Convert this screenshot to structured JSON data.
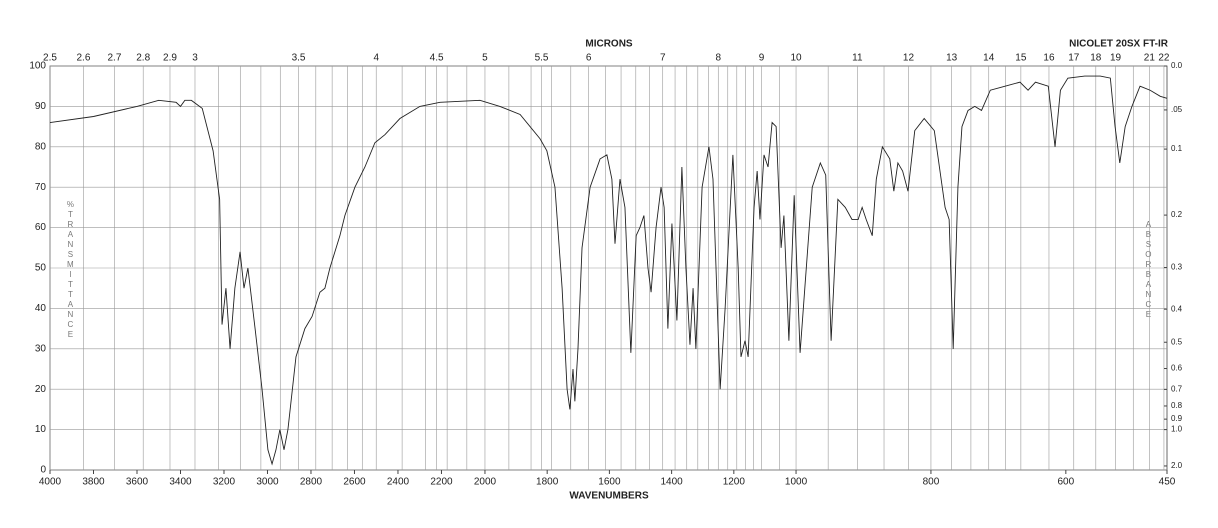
{
  "chart_data": {
    "type": "line",
    "title": "NICOLET 20SX FT-IR",
    "x_label": "WAVENUMBERS",
    "x2_label": "MICRONS",
    "y_label": "%TRANSMITTANCE",
    "y2_label": "ABSORBANCE",
    "color": "#222222",
    "grid": true,
    "xlim": [
      4000,
      450
    ],
    "xbreaks": [
      2000,
      1000
    ],
    "xticks": [
      4000,
      3800,
      3600,
      3400,
      3200,
      3000,
      2800,
      2600,
      2400,
      2200,
      2000,
      1800,
      1600,
      1400,
      1200,
      1000,
      800,
      600,
      450
    ],
    "x2ticks": [
      2.5,
      2.6,
      2.7,
      2.8,
      2.9,
      3,
      3.5,
      4,
      4.5,
      5,
      5.5,
      6,
      7,
      8,
      9,
      10,
      11,
      12,
      13,
      14,
      15,
      16,
      17,
      18,
      19,
      21,
      22
    ],
    "x2minor": [
      3.1,
      3.2,
      3.3,
      3.4,
      3.6,
      3.7,
      3.8,
      3.9,
      4.2,
      4.4,
      4.6,
      4.8,
      5.2,
      5.4,
      5.6,
      5.8,
      6.2,
      6.4,
      6.6,
      6.8,
      7.2,
      7.4,
      7.6,
      7.8,
      8.2,
      8.4,
      8.6,
      8.8,
      9.5,
      10.5,
      11.5,
      12.5,
      13.5,
      14.5,
      20
    ],
    "ylim": [
      0,
      100
    ],
    "yticks": [
      0,
      10,
      20,
      30,
      40,
      50,
      60,
      70,
      80,
      90,
      100
    ],
    "y2ticks": [
      {
        "value": 0,
        "label": "0.0"
      },
      {
        "value": 0.05,
        "label": ".05"
      },
      0.1,
      0.2,
      0.3,
      0.4,
      0.5,
      0.6,
      0.7,
      0.8,
      0.9,
      {
        "value": 1,
        "label": "1.0"
      },
      {
        "value": 2,
        "label": "2.0"
      }
    ],
    "x": [
      4000,
      3800,
      3600,
      3500,
      3420,
      3400,
      3380,
      3350,
      3300,
      3250,
      3220,
      3209,
      3191,
      3172,
      3150,
      3126,
      3108,
      3090,
      3057,
      3025,
      2998,
      2979,
      2961,
      2943,
      2924,
      2906,
      2869,
      2828,
      2795,
      2759,
      2736,
      2713,
      2667,
      2644,
      2598,
      2552,
      2506,
      2460,
      2391,
      2299,
      2207,
      2023,
      1952,
      1887,
      1823,
      1801,
      1775,
      1752,
      1736,
      1727,
      1717,
      1711,
      1701,
      1688,
      1662,
      1630,
      1608,
      1592,
      1582,
      1566,
      1550,
      1531,
      1514,
      1502,
      1489,
      1476,
      1466,
      1450,
      1434,
      1424,
      1412,
      1399,
      1383,
      1367,
      1354,
      1341,
      1331,
      1322,
      1302,
      1280,
      1267,
      1244,
      1228,
      1203,
      1186,
      1177,
      1164,
      1154,
      1135,
      1125,
      1116,
      1103,
      1090,
      1077,
      1064,
      1048,
      1039,
      1023,
      1006,
      994,
      987,
      976,
      964,
      956,
      948,
      938,
      927,
      917,
      908,
      902,
      896,
      887,
      881,
      872,
      861,
      855,
      849,
      842,
      834,
      824,
      810,
      795,
      779,
      773,
      767,
      760,
      754,
      745,
      735,
      725,
      712,
      690,
      668,
      656,
      645,
      626,
      616,
      608,
      597,
      572,
      549,
      534,
      527,
      520,
      512,
      502,
      490,
      475,
      460,
      450
    ],
    "values": [
      86,
      87.5,
      90,
      91.5,
      91,
      90,
      91.5,
      91.5,
      89.5,
      79,
      67,
      36,
      45,
      30,
      45,
      54,
      45,
      50,
      35,
      20,
      5,
      1.5,
      5,
      10,
      5,
      10,
      28,
      35,
      38,
      44,
      45,
      50,
      58,
      63,
      70,
      75,
      81,
      83,
      87,
      90,
      91,
      91.5,
      90,
      88,
      82,
      79,
      70,
      45,
      20,
      15,
      25,
      17,
      30,
      55,
      70,
      77,
      78,
      72,
      56,
      72,
      65,
      29,
      58,
      60,
      63,
      50,
      44,
      60,
      70,
      65,
      35,
      61,
      37,
      75,
      50,
      31,
      45,
      30,
      70,
      80,
      72,
      20,
      40,
      78,
      50,
      28,
      32,
      28,
      65,
      74,
      62,
      78,
      75,
      86,
      85,
      55,
      63,
      32,
      68,
      29,
      45,
      70,
      76,
      73,
      32,
      67,
      65,
      62,
      62,
      65,
      62,
      58,
      72,
      80,
      77,
      69,
      76,
      74,
      69,
      84,
      87,
      84,
      65,
      62,
      30,
      70,
      85,
      89,
      90,
      89,
      94,
      95,
      96,
      94,
      96,
      95,
      80,
      94,
      97,
      97.5,
      97.5,
      97,
      85,
      76,
      85,
      90,
      95,
      94,
      92.5,
      92
    ]
  }
}
